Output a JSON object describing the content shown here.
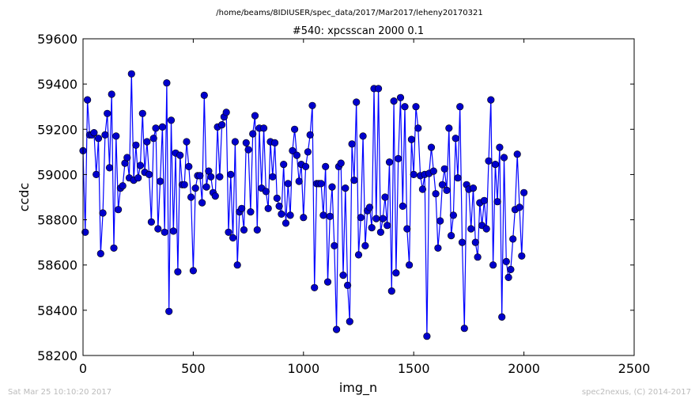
{
  "suptitle": "/home/beams/8IDIUSER/spec_data/2017/Mar2017/leheny20170321",
  "footer": {
    "timestamp": "Sat Mar 25 10:10:20 2017",
    "credit": "spec2nexus, (C) 2014-2017"
  },
  "chart_data": {
    "type": "line",
    "title": "#540: xpcsscan 2000 0.1",
    "xlabel": "img_n",
    "ylabel": "ccdc",
    "xlim": [
      0,
      2500
    ],
    "ylim": [
      58200,
      59600
    ],
    "xticks": [
      0,
      500,
      1000,
      1500,
      2000,
      2500
    ],
    "yticks": [
      58200,
      58400,
      58600,
      58800,
      59000,
      59200,
      59400,
      59600
    ],
    "marker": "circle",
    "line_color": "#0000ff",
    "marker_color": "#0000cc",
    "x": [
      0,
      10,
      20,
      30,
      40,
      50,
      60,
      70,
      80,
      90,
      100,
      110,
      120,
      130,
      140,
      150,
      160,
      170,
      180,
      190,
      200,
      210,
      220,
      230,
      240,
      250,
      260,
      270,
      280,
      290,
      300,
      310,
      320,
      330,
      340,
      350,
      360,
      370,
      380,
      390,
      400,
      410,
      420,
      430,
      440,
      450,
      460,
      470,
      480,
      490,
      500,
      510,
      520,
      530,
      540,
      550,
      560,
      570,
      580,
      590,
      600,
      610,
      620,
      630,
      640,
      650,
      660,
      670,
      680,
      690,
      700,
      710,
      720,
      730,
      740,
      750,
      760,
      770,
      780,
      790,
      800,
      810,
      820,
      830,
      840,
      850,
      860,
      870,
      880,
      890,
      900,
      910,
      920,
      930,
      940,
      950,
      960,
      970,
      980,
      990,
      1000,
      1010,
      1020,
      1030,
      1040,
      1050,
      1060,
      1070,
      1080,
      1090,
      1100,
      1110,
      1120,
      1130,
      1140,
      1150,
      1160,
      1170,
      1180,
      1190,
      1200,
      1210,
      1220,
      1230,
      1240,
      1250,
      1260,
      1270,
      1280,
      1290,
      1300,
      1310,
      1320,
      1330,
      1340,
      1350,
      1360,
      1370,
      1380,
      1390,
      1400,
      1410,
      1420,
      1430,
      1440,
      1450,
      1460,
      1470,
      1480,
      1490,
      1500,
      1510,
      1520,
      1530,
      1540,
      1550,
      1560,
      1570,
      1580,
      1590,
      1600,
      1610,
      1620,
      1630,
      1640,
      1650,
      1660,
      1670,
      1680,
      1690,
      1700,
      1710,
      1720,
      1730,
      1740,
      1750,
      1760,
      1770,
      1780,
      1790,
      1800,
      1810,
      1820,
      1830,
      1840,
      1850,
      1860,
      1870,
      1880,
      1890,
      1900,
      1910,
      1920,
      1930,
      1940,
      1950,
      1960,
      1970,
      1980,
      1990,
      2000
    ],
    "y": [
      59105,
      58745,
      59330,
      59175,
      59175,
      59185,
      59000,
      59160,
      58650,
      58830,
      59175,
      59270,
      59030,
      59355,
      58675,
      59170,
      58845,
      58940,
      58950,
      59050,
      59075,
      58985,
      59445,
      58975,
      59130,
      58985,
      59040,
      59270,
      59010,
      59145,
      59000,
      58790,
      59160,
      59205,
      58760,
      58970,
      59210,
      58745,
      59405,
      58395,
      59240,
      58750,
      59095,
      58570,
      59085,
      58955,
      58955,
      59145,
      59035,
      58900,
      58575,
      58940,
      58995,
      58995,
      58875,
      59350,
      58945,
      59015,
      58990,
      58920,
      58905,
      59210,
      58990,
      59220,
      59255,
      59275,
      58745,
      59000,
      58720,
      59145,
      58600,
      58835,
      58850,
      58755,
      59140,
      59110,
      58835,
      59180,
      59260,
      58755,
      59205,
      58940,
      59205,
      58925,
      58850,
      59145,
      58990,
      59140,
      58895,
      58860,
      58825,
      59045,
      58785,
      58960,
      58820,
      59105,
      59200,
      59085,
      58970,
      59045,
      58810,
      59035,
      59100,
      59175,
      59305,
      58500,
      58960,
      58960,
      58960,
      58820,
      59035,
      58525,
      58815,
      58945,
      58685,
      58315,
      59035,
      59050,
      58555,
      58940,
      58510,
      58350,
      59135,
      58975,
      59320,
      58645,
      58810,
      59170,
      58685,
      58840,
      58855,
      58765,
      59380,
      58805,
      59380,
      58745,
      58805,
      58900,
      58775,
      59055,
      58485,
      59325,
      58565,
      59070,
      59340,
      58860,
      59300,
      58760,
      58600,
      59155,
      59000,
      59300,
      59205,
      58995,
      58935,
      59000,
      58285,
      59005,
      59120,
      59015,
      58915,
      58675,
      58795,
      58955,
      59025,
      58930,
      59205,
      58730,
      58820,
      59160,
      58985,
      59300,
      58700,
      58320,
      58955,
      58935,
      58760,
      58940,
      58700,
      58635,
      58875,
      58775,
      58885,
      58760,
      59060,
      59330,
      58600,
      59045,
      58880,
      59120,
      58370,
      59075,
      58615,
      58545,
      58580,
      58715,
      58845,
      59090,
      58855,
      58640,
      58920
    ]
  }
}
